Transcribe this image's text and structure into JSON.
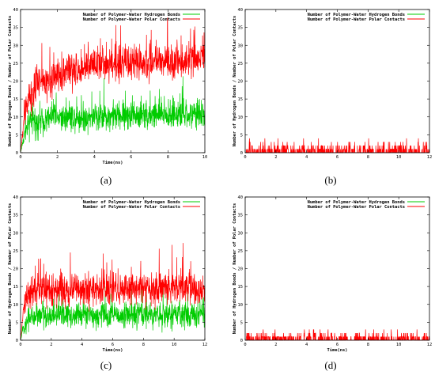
{
  "figure": {
    "panels": [
      {
        "caption": "(a)"
      },
      {
        "caption": "(b)"
      },
      {
        "caption": "(c)"
      },
      {
        "caption": "(d)"
      }
    ]
  },
  "chart_data": [
    {
      "type": "line",
      "panel": "(a)",
      "xlabel": "Time(ns)",
      "ylabel": "Number of Hydrogen Bonds / Number of Polar Contacts",
      "xlim": [
        0,
        10
      ],
      "ylim": [
        0,
        40
      ],
      "xticks": [
        0,
        2,
        4,
        6,
        8,
        10
      ],
      "yticks": [
        0,
        5,
        10,
        15,
        20,
        25,
        30,
        35,
        40
      ],
      "legend_position": "top-right",
      "series": [
        {
          "name": "Number of Polymer-Water Hydrogen Bonds",
          "color": "#00cc00",
          "trend": {
            "x": [
              0,
              0.2,
              0.5,
              1,
              2,
              4,
              6,
              8,
              10
            ],
            "y": [
              0,
              5,
              8,
              9,
              10,
              10,
              10.5,
              10.5,
              10.5
            ]
          },
          "spread": 4
        },
        {
          "name": "Number of Polymer-Water Polar Contacts",
          "color": "#ff0000",
          "trend": {
            "x": [
              0,
              0.2,
              0.5,
              1,
              2,
              4,
              6,
              8,
              10
            ],
            "y": [
              0,
              10,
              16,
              19,
              22,
              24,
              25,
              25.5,
              26
            ]
          },
          "spread": 5
        }
      ]
    },
    {
      "type": "line",
      "panel": "(b)",
      "xlabel": "",
      "ylabel": "Number of Hydrogen Bonds / Number of Polar Contacts",
      "xlim": [
        0,
        12
      ],
      "ylim": [
        0,
        40
      ],
      "xticks": [
        0,
        2,
        4,
        6,
        8,
        10,
        12
      ],
      "yticks": [
        0,
        5,
        10,
        15,
        20,
        25,
        30,
        35,
        40
      ],
      "legend_position": "top-right",
      "series": [
        {
          "name": "Number of Polymer-Water Hydrogen Bonds",
          "color": "#00cc00",
          "trend": {
            "x": [
              0,
              12
            ],
            "y": [
              0,
              0
            ]
          },
          "spread": 0
        },
        {
          "name": "Number of Polymer-Water Polar Contacts",
          "color": "#ff0000",
          "trend": {
            "x": [
              0,
              12
            ],
            "y": [
              0.6,
              0.6
            ]
          },
          "spread": 1.2,
          "max": 4
        }
      ]
    },
    {
      "type": "line",
      "panel": "(c)",
      "xlabel": "Time(ns)",
      "ylabel": "Number of Hydrogen Bonds / Number of Polar Contacts",
      "xlim": [
        0,
        12
      ],
      "ylim": [
        0,
        40
      ],
      "xticks": [
        0,
        2,
        4,
        6,
        8,
        10,
        12
      ],
      "yticks": [
        0,
        5,
        10,
        15,
        20,
        25,
        30,
        35,
        40
      ],
      "legend_position": "top-right",
      "series": [
        {
          "name": "Number of Polymer-Water Hydrogen Bonds",
          "color": "#00cc00",
          "trend": {
            "x": [
              0,
              0.2,
              0.5,
              1,
              3,
              6,
              9,
              12
            ],
            "y": [
              0,
              4,
              6,
              7,
              7,
              7,
              7,
              7
            ]
          },
          "spread": 3.5
        },
        {
          "name": "Number of Polymer-Water Polar Contacts",
          "color": "#ff0000",
          "trend": {
            "x": [
              0,
              0.2,
              0.5,
              1,
              3,
              6,
              9,
              12
            ],
            "y": [
              0,
              9,
              13,
              14,
              14,
              14,
              14.5,
              14.5
            ]
          },
          "spread": 4.5
        }
      ]
    },
    {
      "type": "line",
      "panel": "(d)",
      "xlabel": "Time(ns)",
      "ylabel": "Number of Hydrogen Bonds / Number of Polar Contacts",
      "xlim": [
        0,
        12
      ],
      "ylim": [
        0,
        40
      ],
      "xticks": [
        0,
        2,
        4,
        6,
        8,
        10,
        12
      ],
      "yticks": [
        0,
        5,
        10,
        15,
        20,
        25,
        30,
        35,
        40
      ],
      "legend_position": "top-right",
      "series": [
        {
          "name": "Number of Polymer-Water Hydrogen Bonds",
          "color": "#00cc00",
          "trend": {
            "x": [
              0,
              12
            ],
            "y": [
              0,
              0
            ]
          },
          "spread": 0
        },
        {
          "name": "Number of Polymer-Water Polar Contacts",
          "color": "#ff0000",
          "trend": {
            "x": [
              0,
              12
            ],
            "y": [
              0.5,
              0.5
            ]
          },
          "spread": 1,
          "max": 3
        }
      ]
    }
  ]
}
